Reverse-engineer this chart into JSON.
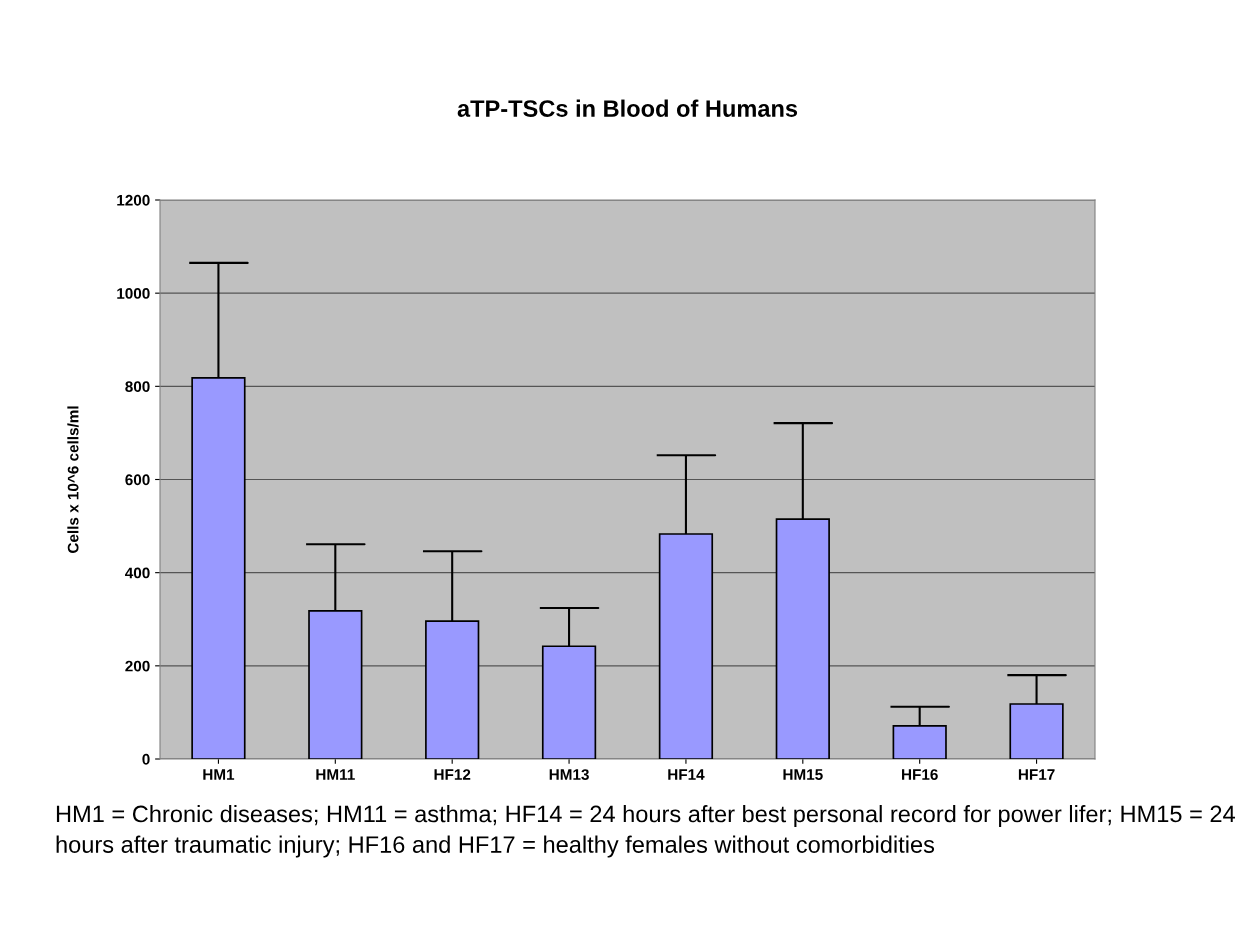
{
  "chart_data": {
    "type": "bar",
    "title": "aTP-TSCs in Blood of Humans",
    "ylabel": "Cells x 10^6 cells/ml",
    "categories": [
      "HM1",
      "HM11",
      "HF12",
      "HM13",
      "HF14",
      "HM15",
      "HF16",
      "HF17"
    ],
    "values": [
      818,
      318,
      296,
      242,
      483,
      515,
      71,
      118
    ],
    "errors": [
      [
        818,
        1065
      ],
      [
        318,
        461
      ],
      [
        296,
        446
      ],
      [
        242,
        324
      ],
      [
        483,
        652
      ],
      [
        515,
        721
      ],
      [
        71,
        112
      ],
      [
        118,
        180
      ]
    ],
    "color": "#9999ff",
    "ylim": [
      0,
      1200
    ],
    "yticks": [
      0,
      200,
      400,
      600,
      800,
      1000,
      1200
    ],
    "grid": "y",
    "annotations": [
      "HM1 = Chronic diseases; HM11 = asthma; HF14 = 24 hours after best personal record for power lifer; HM15 = 24 hours after traumatic injury; HF16 and HF17 = healthy females without comorbidities"
    ]
  }
}
